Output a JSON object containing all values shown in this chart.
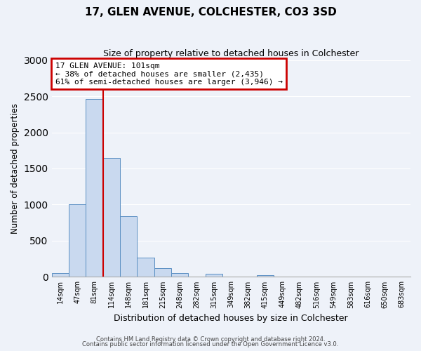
{
  "title": "17, GLEN AVENUE, COLCHESTER, CO3 3SD",
  "subtitle": "Size of property relative to detached houses in Colchester",
  "xlabel": "Distribution of detached houses by size in Colchester",
  "ylabel": "Number of detached properties",
  "bin_labels": [
    "14sqm",
    "47sqm",
    "81sqm",
    "114sqm",
    "148sqm",
    "181sqm",
    "215sqm",
    "248sqm",
    "282sqm",
    "315sqm",
    "349sqm",
    "382sqm",
    "415sqm",
    "449sqm",
    "482sqm",
    "516sqm",
    "549sqm",
    "583sqm",
    "616sqm",
    "650sqm",
    "683sqm"
  ],
  "bar_values": [
    50,
    1000,
    2460,
    1650,
    840,
    270,
    125,
    50,
    0,
    40,
    0,
    0,
    20,
    0,
    0,
    0,
    0,
    0,
    0,
    0,
    0
  ],
  "bar_color": "#c9d9ef",
  "bar_edge_color": "#5a8fc3",
  "vline_color": "#cc0000",
  "vline_bin_index": 2,
  "annotation_title": "17 GLEN AVENUE: 101sqm",
  "annotation_line1": "← 38% of detached houses are smaller (2,435)",
  "annotation_line2": "61% of semi-detached houses are larger (3,946) →",
  "annotation_box_color": "#cc0000",
  "ylim": [
    0,
    3000
  ],
  "yticks": [
    0,
    500,
    1000,
    1500,
    2000,
    2500,
    3000
  ],
  "footer_line1": "Contains HM Land Registry data © Crown copyright and database right 2024.",
  "footer_line2": "Contains public sector information licensed under the Open Government Licence v3.0.",
  "background_color": "#eef2f9",
  "grid_color": "#ffffff"
}
